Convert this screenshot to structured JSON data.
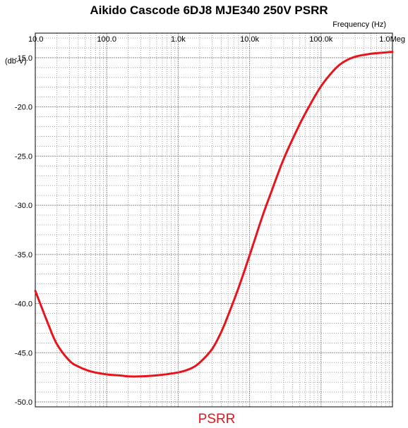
{
  "chart_data": {
    "type": "line",
    "title": "Aikido Cascode 6DJ8 MJE340 250V PSRR",
    "xlabel": "Frequency   (Hz)",
    "ylabel": "(db-V)",
    "x_scale": "log",
    "xlim": [
      10,
      1000000
    ],
    "ylim": [
      -50.5,
      -12.5
    ],
    "x_ticks": [
      {
        "value": 10,
        "label": "10.0"
      },
      {
        "value": 100,
        "label": "100.0"
      },
      {
        "value": 1000,
        "label": "1.0k"
      },
      {
        "value": 10000,
        "label": "10.0k"
      },
      {
        "value": 100000,
        "label": "100.0k"
      },
      {
        "value": 1000000,
        "label": "1.0Meg"
      }
    ],
    "y_ticks": [
      {
        "value": -15,
        "label": "-15.0"
      },
      {
        "value": -20,
        "label": "-20.0"
      },
      {
        "value": -25,
        "label": "-25.0"
      },
      {
        "value": -30,
        "label": "-30.0"
      },
      {
        "value": -35,
        "label": "-35.0"
      },
      {
        "value": -40,
        "label": "-40.0"
      },
      {
        "value": -45,
        "label": "-45.0"
      },
      {
        "value": -50,
        "label": "-50.0"
      }
    ],
    "grid": true,
    "series": [
      {
        "name": "PSRR",
        "color": "#e8141c",
        "x": [
          10,
          15,
          20,
          30,
          40,
          60,
          100,
          150,
          200,
          300,
          500,
          1000,
          1500,
          2000,
          3000,
          4000,
          5000,
          7000,
          10000,
          15000,
          20000,
          30000,
          50000,
          70000,
          100000,
          150000,
          200000,
          300000,
          500000,
          700000,
          1000000
        ],
        "y": [
          -38.7,
          -42.0,
          -44.1,
          -45.8,
          -46.4,
          -46.9,
          -47.2,
          -47.3,
          -47.4,
          -47.4,
          -47.3,
          -47.0,
          -46.6,
          -46.0,
          -44.6,
          -42.9,
          -41.2,
          -38.4,
          -35.1,
          -31.2,
          -28.7,
          -25.3,
          -21.8,
          -19.8,
          -17.9,
          -16.3,
          -15.5,
          -14.9,
          -14.6,
          -14.5,
          -14.4
        ]
      }
    ],
    "legend_position": "bottom-center"
  }
}
